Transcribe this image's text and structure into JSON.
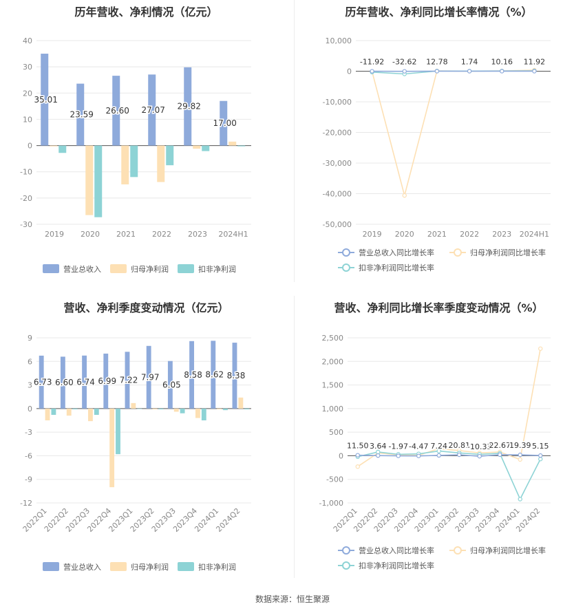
{
  "colors": {
    "revenue": "#8eaadb",
    "net_profit": "#fde0b4",
    "deducted": "#8dd3d5",
    "revenue_line": "#8eaadb",
    "net_profit_line": "#fde0b4",
    "deducted_line": "#8dd3d5",
    "grid": "#e8e8e8",
    "axis_text": "#888888"
  },
  "source_text": "数据来源：恒生聚源",
  "chart_data": [
    {
      "type": "bar",
      "title": "历年营收、净利情况（亿元）",
      "categories": [
        "2019",
        "2020",
        "2021",
        "2022",
        "2023",
        "2024H1"
      ],
      "ylim": [
        -30,
        40
      ],
      "yticks": [
        40,
        30,
        20,
        10,
        0,
        -10,
        -20,
        -30
      ],
      "series": [
        {
          "name": "营业总收入",
          "values": [
            35.01,
            23.59,
            26.6,
            27.07,
            29.82,
            17.0
          ],
          "labels": [
            "35.01",
            "23.59",
            "26.60",
            "27.07",
            "29.82",
            "17.00"
          ]
        },
        {
          "name": "归母净利润",
          "values": [
            -0.3,
            -26.5,
            -14.8,
            -13.9,
            -1.2,
            1.5
          ]
        },
        {
          "name": "扣非净利润",
          "values": [
            -2.8,
            -27.3,
            -12.0,
            -7.5,
            -2.1,
            -0.3
          ]
        }
      ],
      "legend": "bottom"
    },
    {
      "type": "line",
      "title": "历年营收、净利同比增长率情况（%）",
      "categories": [
        "2019",
        "2020",
        "2021",
        "2022",
        "2023",
        "2024H1"
      ],
      "ylim": [
        -50000,
        10000
      ],
      "yticks": [
        "10,000",
        "0",
        "-10,000",
        "-20,000",
        "-30,000",
        "-40,000",
        "-50,000"
      ],
      "ytick_values": [
        10000,
        0,
        -10000,
        -20000,
        -30000,
        -40000,
        -50000
      ],
      "series": [
        {
          "name": "营业总收入同比增长率",
          "values": [
            -11.92,
            -32.62,
            12.78,
            1.74,
            10.16,
            11.92
          ],
          "labels": [
            "-11.92",
            "-32.62",
            "12.78",
            "1.74",
            "10.16",
            "11.92"
          ]
        },
        {
          "name": "归母净利润同比增长率",
          "values": [
            -80,
            -40600,
            95,
            5,
            90,
            350
          ]
        },
        {
          "name": "扣非净利润同比增长率",
          "values": [
            -300,
            -900,
            55,
            38,
            72,
            110
          ]
        }
      ],
      "legend": "bottom"
    },
    {
      "type": "bar",
      "title": "营收、净利季度变动情况（亿元）",
      "categories": [
        "2022Q1",
        "2022Q2",
        "2022Q3",
        "2022Q4",
        "2023Q1",
        "2023Q2",
        "2023Q3",
        "2023Q4",
        "2024Q1",
        "2024Q2"
      ],
      "ylim": [
        -12,
        9
      ],
      "yticks": [
        9,
        6,
        3,
        0,
        -3,
        -6,
        -9,
        -12
      ],
      "series": [
        {
          "name": "营业总收入",
          "values": [
            6.73,
            6.6,
            6.74,
            6.99,
            7.22,
            7.97,
            6.05,
            8.58,
            8.62,
            8.38
          ],
          "labels": [
            "6.73",
            "6.60",
            "6.74",
            "6.99",
            "7.22",
            "7.97",
            "6.05",
            "8.58",
            "8.62",
            "8.38"
          ]
        },
        {
          "name": "归母净利润",
          "values": [
            -1.5,
            -0.9,
            -1.6,
            -10.0,
            0.7,
            -0.1,
            -0.4,
            -1.2,
            -0.1,
            1.4
          ]
        },
        {
          "name": "扣非净利润",
          "values": [
            -0.8,
            -0.1,
            -0.8,
            -5.8,
            -0.05,
            -0.1,
            -0.6,
            -1.5,
            -0.2,
            -0.1
          ]
        }
      ],
      "legend": "bottom"
    },
    {
      "type": "line",
      "title": "营收、净利同比增长率季度变动情况（%）",
      "categories": [
        "2022Q1",
        "2022Q2",
        "2022Q3",
        "2022Q4",
        "2023Q1",
        "2023Q2",
        "2023Q3",
        "2023Q4",
        "2024Q1",
        "2024Q2"
      ],
      "ylim": [
        -1000,
        2500
      ],
      "yticks": [
        "2,500",
        "2,000",
        "1,500",
        "1,000",
        "500",
        "0",
        "-500",
        "-1,000"
      ],
      "ytick_values": [
        2500,
        2000,
        1500,
        1000,
        500,
        0,
        -500,
        -1000
      ],
      "series": [
        {
          "name": "营业总收入同比增长率",
          "values": [
            11.5,
            3.64,
            -1.97,
            -4.47,
            7.24,
            20.81,
            -10.33,
            22.67,
            19.39,
            5.15
          ],
          "labels": [
            "11.50",
            "3.64",
            "-1.97",
            "-4.47",
            "7.24",
            "20.81",
            "-10.33",
            "22.67",
            "19.39",
            "5.15"
          ]
        },
        {
          "name": "归母净利润同比增长率",
          "values": [
            -230,
            60,
            20,
            10,
            150,
            110,
            60,
            80,
            -80,
            2270
          ]
        },
        {
          "name": "扣非净利润同比增长率",
          "values": [
            -20,
            80,
            30,
            40,
            100,
            60,
            30,
            50,
            -920,
            -70
          ]
        }
      ],
      "legend": "bottom"
    }
  ]
}
